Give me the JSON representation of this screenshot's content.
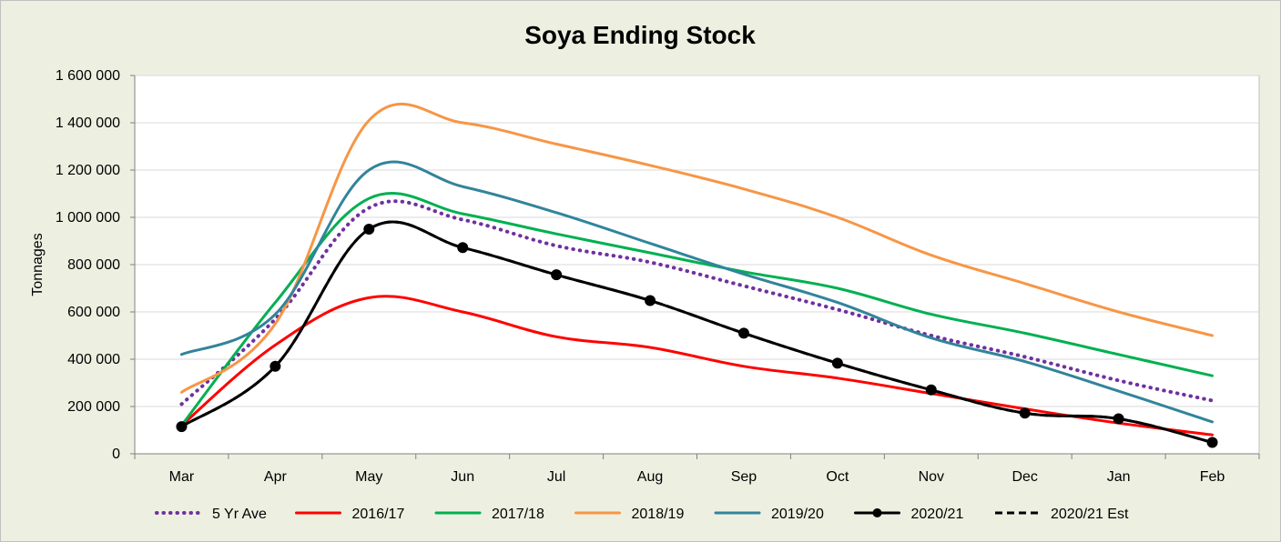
{
  "chart_data": {
    "type": "line",
    "title": "Soya Ending Stock",
    "ylabel": "Tonnages",
    "xlabel": "",
    "categories": [
      "Mar",
      "Apr",
      "May",
      "Jun",
      "Jul",
      "Aug",
      "Sep",
      "Oct",
      "Nov",
      "Dec",
      "Jan",
      "Feb"
    ],
    "ylim": [
      0,
      1600000
    ],
    "yticks": [
      0,
      200000,
      400000,
      600000,
      800000,
      1000000,
      1200000,
      1400000,
      1600000
    ],
    "ytick_labels": [
      "0",
      "200 000",
      "400 000",
      "600 000",
      "800 000",
      "1 000 000",
      "1 200 000",
      "1 400 000",
      "1 600 000"
    ],
    "grid": "horizontal",
    "legend_position": "bottom",
    "series": [
      {
        "name": "5 Yr Ave",
        "color": "#7030a0",
        "style": "dotted",
        "markers": false,
        "values": [
          210000,
          570000,
          1040000,
          990000,
          880000,
          810000,
          710000,
          610000,
          500000,
          410000,
          310000,
          225000
        ]
      },
      {
        "name": "2016/17",
        "color": "#ff0000",
        "style": "solid",
        "markers": false,
        "values": [
          120000,
          460000,
          660000,
          600000,
          495000,
          450000,
          370000,
          320000,
          255000,
          190000,
          130000,
          80000
        ]
      },
      {
        "name": "2017/18",
        "color": "#00b050",
        "style": "solid",
        "markers": false,
        "values": [
          120000,
          640000,
          1080000,
          1015000,
          930000,
          850000,
          770000,
          700000,
          590000,
          510000,
          420000,
          330000
        ]
      },
      {
        "name": "2018/19",
        "color": "#f79646",
        "style": "solid",
        "markers": false,
        "values": [
          260000,
          550000,
          1410000,
          1400000,
          1310000,
          1220000,
          1120000,
          1000000,
          840000,
          720000,
          600000,
          500000
        ]
      },
      {
        "name": "2019/20",
        "color": "#31849b",
        "style": "solid",
        "markers": false,
        "values": [
          420000,
          590000,
          1200000,
          1130000,
          1020000,
          890000,
          760000,
          640000,
          490000,
          390000,
          265000,
          135000
        ]
      },
      {
        "name": "2020/21",
        "color": "#000000",
        "style": "solid",
        "markers": true,
        "values": [
          115000,
          370000,
          950000,
          872000,
          757000,
          648000,
          510000,
          383000,
          270000,
          172000,
          148000,
          48000
        ]
      },
      {
        "name": "2020/21 Est",
        "color": "#000000",
        "style": "dashed",
        "markers": false,
        "values": [
          115000,
          370000,
          950000,
          872000,
          757000,
          648000,
          510000,
          383000,
          270000,
          172000,
          148000,
          48000
        ]
      }
    ]
  }
}
